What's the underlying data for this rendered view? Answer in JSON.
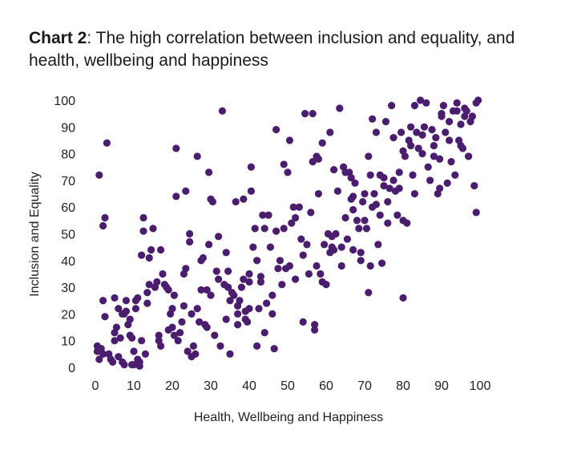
{
  "title_prefix": "Chart 2",
  "title_rest": ": The high correlation between inclusion and equality, and health, wellbeing and happiness",
  "chart_data": {
    "type": "scatter",
    "xlabel": "Health, Wellbeing and Happiness",
    "ylabel": "Inclusion and Equality",
    "xlim": [
      0,
      100
    ],
    "ylim": [
      0,
      100
    ],
    "xticks": [
      0,
      10,
      20,
      30,
      40,
      50,
      60,
      70,
      80,
      90,
      100
    ],
    "yticks": [
      0,
      10,
      20,
      30,
      40,
      50,
      60,
      70,
      80,
      90,
      100
    ],
    "grid": false,
    "marker_color": "#4b1d6e",
    "points": [
      [
        0.5,
        8
      ],
      [
        0.5,
        6
      ],
      [
        1,
        3
      ],
      [
        1.5,
        7
      ],
      [
        2,
        5
      ],
      [
        1,
        72
      ],
      [
        2,
        53
      ],
      [
        2.5,
        56
      ],
      [
        3,
        84
      ],
      [
        2,
        25
      ],
      [
        2.5,
        19
      ],
      [
        3.5,
        5
      ],
      [
        4,
        3
      ],
      [
        4.5,
        2
      ],
      [
        5,
        10
      ],
      [
        5,
        13
      ],
      [
        5.5,
        15
      ],
      [
        5,
        26
      ],
      [
        6,
        22
      ],
      [
        6.5,
        11
      ],
      [
        6,
        4
      ],
      [
        7,
        2
      ],
      [
        7.5,
        1
      ],
      [
        7,
        20
      ],
      [
        7.5,
        20
      ],
      [
        8,
        21
      ],
      [
        8,
        25
      ],
      [
        8.5,
        16
      ],
      [
        9,
        18
      ],
      [
        9,
        12
      ],
      [
        9.5,
        11
      ],
      [
        9.5,
        1
      ],
      [
        10,
        1
      ],
      [
        10,
        6
      ],
      [
        10.5,
        22
      ],
      [
        10.5,
        25
      ],
      [
        11,
        26
      ],
      [
        11,
        3
      ],
      [
        11.5,
        0.5
      ],
      [
        11.5,
        2
      ],
      [
        12,
        10
      ],
      [
        12,
        42
      ],
      [
        12.5,
        51
      ],
      [
        12.5,
        56
      ],
      [
        13,
        5
      ],
      [
        13.5,
        24
      ],
      [
        13.5,
        28
      ],
      [
        14,
        31
      ],
      [
        14,
        41
      ],
      [
        14.5,
        44
      ],
      [
        15,
        52
      ],
      [
        15.5,
        30
      ],
      [
        16,
        32
      ],
      [
        16.5,
        12
      ],
      [
        16.5,
        10
      ],
      [
        17,
        8
      ],
      [
        17,
        44
      ],
      [
        17.5,
        35
      ],
      [
        18,
        31
      ],
      [
        18.5,
        30
      ],
      [
        19,
        29
      ],
      [
        19,
        14
      ],
      [
        19.5,
        20
      ],
      [
        20,
        22
      ],
      [
        20,
        15
      ],
      [
        20.5,
        12
      ],
      [
        20.5,
        27
      ],
      [
        21,
        64
      ],
      [
        21,
        82
      ],
      [
        21.5,
        10
      ],
      [
        22,
        13
      ],
      [
        22.5,
        17
      ],
      [
        23,
        23
      ],
      [
        23,
        35
      ],
      [
        23.5,
        37
      ],
      [
        23.5,
        66
      ],
      [
        24,
        6
      ],
      [
        24.5,
        47
      ],
      [
        24.5,
        50
      ],
      [
        25,
        20
      ],
      [
        25,
        4
      ],
      [
        25.5,
        8
      ],
      [
        26,
        5
      ],
      [
        26.5,
        79
      ],
      [
        26.5,
        22
      ],
      [
        27,
        17
      ],
      [
        27.5,
        40
      ],
      [
        27.5,
        29
      ],
      [
        28,
        41
      ],
      [
        28.5,
        16
      ],
      [
        29,
        29
      ],
      [
        29,
        15
      ],
      [
        29.5,
        73
      ],
      [
        29.5,
        46
      ],
      [
        30,
        27
      ],
      [
        30,
        63
      ],
      [
        30.5,
        62
      ],
      [
        31,
        12
      ],
      [
        31.5,
        36
      ],
      [
        32,
        33
      ],
      [
        32,
        49
      ],
      [
        32.5,
        8
      ],
      [
        33,
        96
      ],
      [
        33.5,
        31
      ],
      [
        34,
        18
      ],
      [
        34,
        43
      ],
      [
        34.5,
        36
      ],
      [
        34.5,
        30
      ],
      [
        35,
        5
      ],
      [
        35,
        25
      ],
      [
        35.5,
        28
      ],
      [
        36,
        27
      ],
      [
        36.5,
        62
      ],
      [
        37,
        20
      ],
      [
        37,
        23
      ],
      [
        37,
        16
      ],
      [
        37.5,
        25
      ],
      [
        38,
        30
      ],
      [
        38.5,
        63
      ],
      [
        38.5,
        33
      ],
      [
        39,
        18
      ],
      [
        39,
        21
      ],
      [
        39.5,
        17
      ],
      [
        40,
        32
      ],
      [
        40,
        35
      ],
      [
        40,
        22
      ],
      [
        40.5,
        75
      ],
      [
        40.5,
        66
      ],
      [
        41,
        45
      ],
      [
        41.5,
        52
      ],
      [
        42,
        40
      ],
      [
        42,
        8
      ],
      [
        42.5,
        22
      ],
      [
        43,
        34
      ],
      [
        43,
        32
      ],
      [
        43.5,
        57
      ],
      [
        44,
        13
      ],
      [
        44,
        52
      ],
      [
        44.5,
        24
      ],
      [
        45,
        57
      ],
      [
        45.5,
        45
      ],
      [
        46,
        27
      ],
      [
        46,
        20
      ],
      [
        46.5,
        7
      ],
      [
        47,
        89
      ],
      [
        47,
        51
      ],
      [
        47.5,
        37
      ],
      [
        48,
        40
      ],
      [
        48.5,
        31
      ],
      [
        49,
        76
      ],
      [
        49,
        52
      ],
      [
        49.5,
        37
      ],
      [
        50,
        73
      ],
      [
        50.5,
        85
      ],
      [
        50.5,
        38
      ],
      [
        51,
        54
      ],
      [
        51.5,
        60
      ],
      [
        52,
        33
      ],
      [
        52,
        56
      ],
      [
        53,
        60
      ],
      [
        53.5,
        48
      ],
      [
        54,
        17
      ],
      [
        54,
        42
      ],
      [
        54.5,
        95
      ],
      [
        55,
        46
      ],
      [
        55.5,
        35
      ],
      [
        56,
        58
      ],
      [
        56.5,
        95
      ],
      [
        56.5,
        77
      ],
      [
        57,
        16
      ],
      [
        57,
        14
      ],
      [
        57.5,
        38
      ],
      [
        57.5,
        79
      ],
      [
        58,
        78
      ],
      [
        58.5,
        35
      ],
      [
        59,
        32
      ],
      [
        59,
        84
      ],
      [
        59.5,
        46
      ],
      [
        60,
        31
      ],
      [
        60.5,
        50
      ],
      [
        61,
        88
      ],
      [
        61.5,
        49
      ],
      [
        61.5,
        45
      ],
      [
        62,
        44
      ],
      [
        62,
        74
      ],
      [
        62.5,
        50
      ],
      [
        63,
        66
      ],
      [
        63.5,
        97
      ],
      [
        64,
        38
      ],
      [
        64,
        45
      ],
      [
        64.5,
        75
      ],
      [
        65,
        56
      ],
      [
        65,
        73
      ],
      [
        65.5,
        48
      ],
      [
        66,
        73
      ],
      [
        66.5,
        71
      ],
      [
        67,
        64
      ],
      [
        67,
        59
      ],
      [
        67.5,
        69
      ],
      [
        68,
        55
      ],
      [
        68.5,
        52
      ],
      [
        69,
        43
      ],
      [
        69,
        40
      ],
      [
        69.5,
        62
      ],
      [
        70,
        65
      ],
      [
        70.5,
        52
      ],
      [
        71,
        28
      ],
      [
        71,
        79
      ],
      [
        71.5,
        38
      ],
      [
        71.5,
        72
      ],
      [
        72,
        93
      ],
      [
        72,
        60
      ],
      [
        72.5,
        65
      ],
      [
        73,
        61
      ],
      [
        73,
        88
      ],
      [
        73.5,
        46
      ],
      [
        74,
        57
      ],
      [
        74.5,
        39
      ],
      [
        75,
        71
      ],
      [
        75,
        68
      ],
      [
        75.5,
        92
      ],
      [
        76,
        54
      ],
      [
        76,
        62
      ],
      [
        76.5,
        67
      ],
      [
        77,
        98
      ],
      [
        77.5,
        86
      ],
      [
        77.5,
        70
      ],
      [
        78,
        66
      ],
      [
        78.5,
        57
      ],
      [
        79,
        73
      ],
      [
        79.5,
        88
      ],
      [
        80,
        26
      ],
      [
        80,
        81
      ],
      [
        80,
        55
      ],
      [
        80.5,
        79
      ],
      [
        81,
        54
      ],
      [
        81.5,
        85
      ],
      [
        82,
        83
      ],
      [
        82,
        90
      ],
      [
        82.5,
        72
      ],
      [
        83,
        65
      ],
      [
        83,
        98
      ],
      [
        83.5,
        88
      ],
      [
        84,
        82
      ],
      [
        84.5,
        100
      ],
      [
        85,
        80
      ],
      [
        85,
        87
      ],
      [
        85.5,
        90
      ],
      [
        86,
        99
      ],
      [
        86.5,
        75
      ],
      [
        87,
        70
      ],
      [
        87.5,
        89
      ],
      [
        88,
        79
      ],
      [
        88,
        83
      ],
      [
        88.5,
        86
      ],
      [
        89,
        65
      ],
      [
        89.5,
        67
      ],
      [
        89.5,
        78
      ],
      [
        90,
        94
      ],
      [
        90,
        95
      ],
      [
        90.5,
        98
      ],
      [
        91,
        88
      ],
      [
        91.5,
        69
      ],
      [
        92,
        85
      ],
      [
        92,
        92
      ],
      [
        92.5,
        77
      ],
      [
        93,
        96
      ],
      [
        93.5,
        72
      ],
      [
        94,
        99
      ],
      [
        94,
        96
      ],
      [
        94.5,
        85
      ],
      [
        95,
        91
      ],
      [
        95,
        83
      ],
      [
        95.5,
        82
      ],
      [
        96,
        94
      ],
      [
        96,
        97
      ],
      [
        96.5,
        96
      ],
      [
        97,
        79
      ],
      [
        97,
        79
      ],
      [
        97.5,
        92
      ],
      [
        98,
        94
      ],
      [
        98.5,
        68
      ],
      [
        99,
        58
      ],
      [
        99,
        99
      ],
      [
        99.5,
        100
      ],
      [
        66.5,
        63
      ],
      [
        79,
        67
      ],
      [
        74,
        72
      ],
      [
        70,
        55
      ],
      [
        67,
        44
      ],
      [
        58,
        65
      ],
      [
        61,
        43
      ]
    ]
  }
}
